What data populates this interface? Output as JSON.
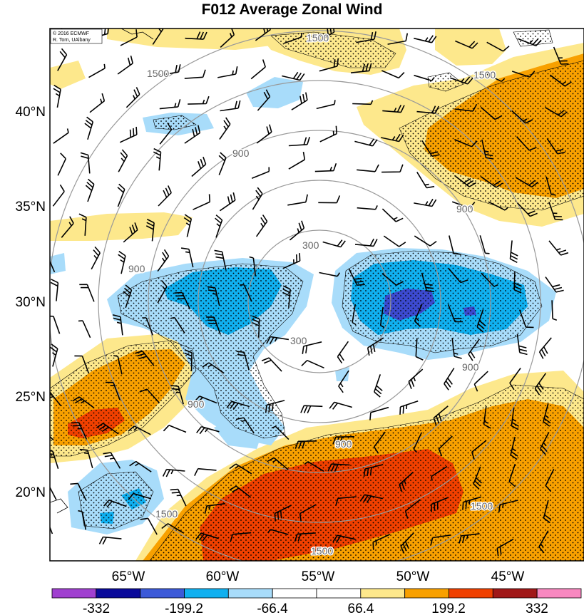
{
  "title": "F012 Average Zonal Wind",
  "credit": {
    "line1": "© 2016 ECMWF",
    "line2": "R. Torn, UAlbany"
  },
  "latitude_labels": [
    "40°N",
    "35°N",
    "30°N",
    "25°N",
    "20°N"
  ],
  "longitude_labels": [
    "65°W",
    "60°W",
    "55°W",
    "50°W",
    "45°W"
  ],
  "range_ring_labels": [
    "300",
    "900",
    "1500"
  ],
  "colorbar": {
    "colors": [
      "#a040d0",
      "#0a0a9a",
      "#3c5ad8",
      "#10b0f0",
      "#a8dcfa",
      "#ffffff",
      "#ffffff",
      "#fde88c",
      "#f8a000",
      "#f04000",
      "#a01818",
      "#f888c0"
    ],
    "tick_labels": [
      "-332",
      "-199.2",
      "-66.4",
      "66.4",
      "199.2",
      "332"
    ]
  },
  "palette": {
    "negative_strong": "#3c4ad0",
    "negative_mid": "#10b0f0",
    "negative_weak": "#a8dcfa",
    "positive_weak": "#fde88c",
    "positive_mid": "#f8a000",
    "positive_strong": "#f04000",
    "ring": "#999999"
  }
}
